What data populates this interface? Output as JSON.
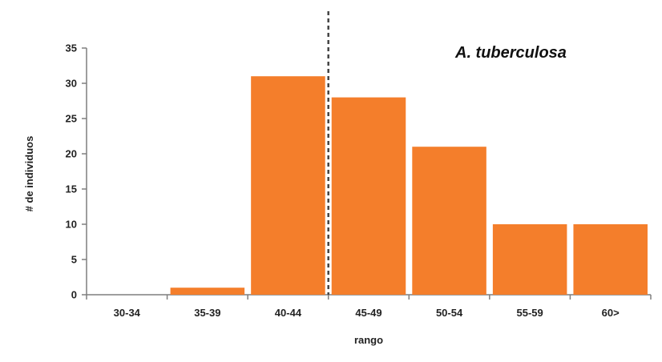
{
  "chart_data": {
    "type": "bar",
    "title": "A. tuberculosa",
    "xlabel": "rango",
    "ylabel": "# de individuos",
    "categories": [
      "30-34",
      "35-39",
      "40-44",
      "45-49",
      "50-54",
      "55-59",
      "60>"
    ],
    "values": [
      0,
      1,
      31,
      28,
      21,
      10,
      10
    ],
    "ylim": [
      0,
      35
    ],
    "yticks": [
      0,
      5,
      10,
      15,
      20,
      25,
      30,
      35
    ],
    "grid": false,
    "legend": "none",
    "bar_color": "#f47e2b",
    "reference_line": {
      "style": "dashed",
      "between": [
        "40-44",
        "45-49"
      ]
    }
  }
}
